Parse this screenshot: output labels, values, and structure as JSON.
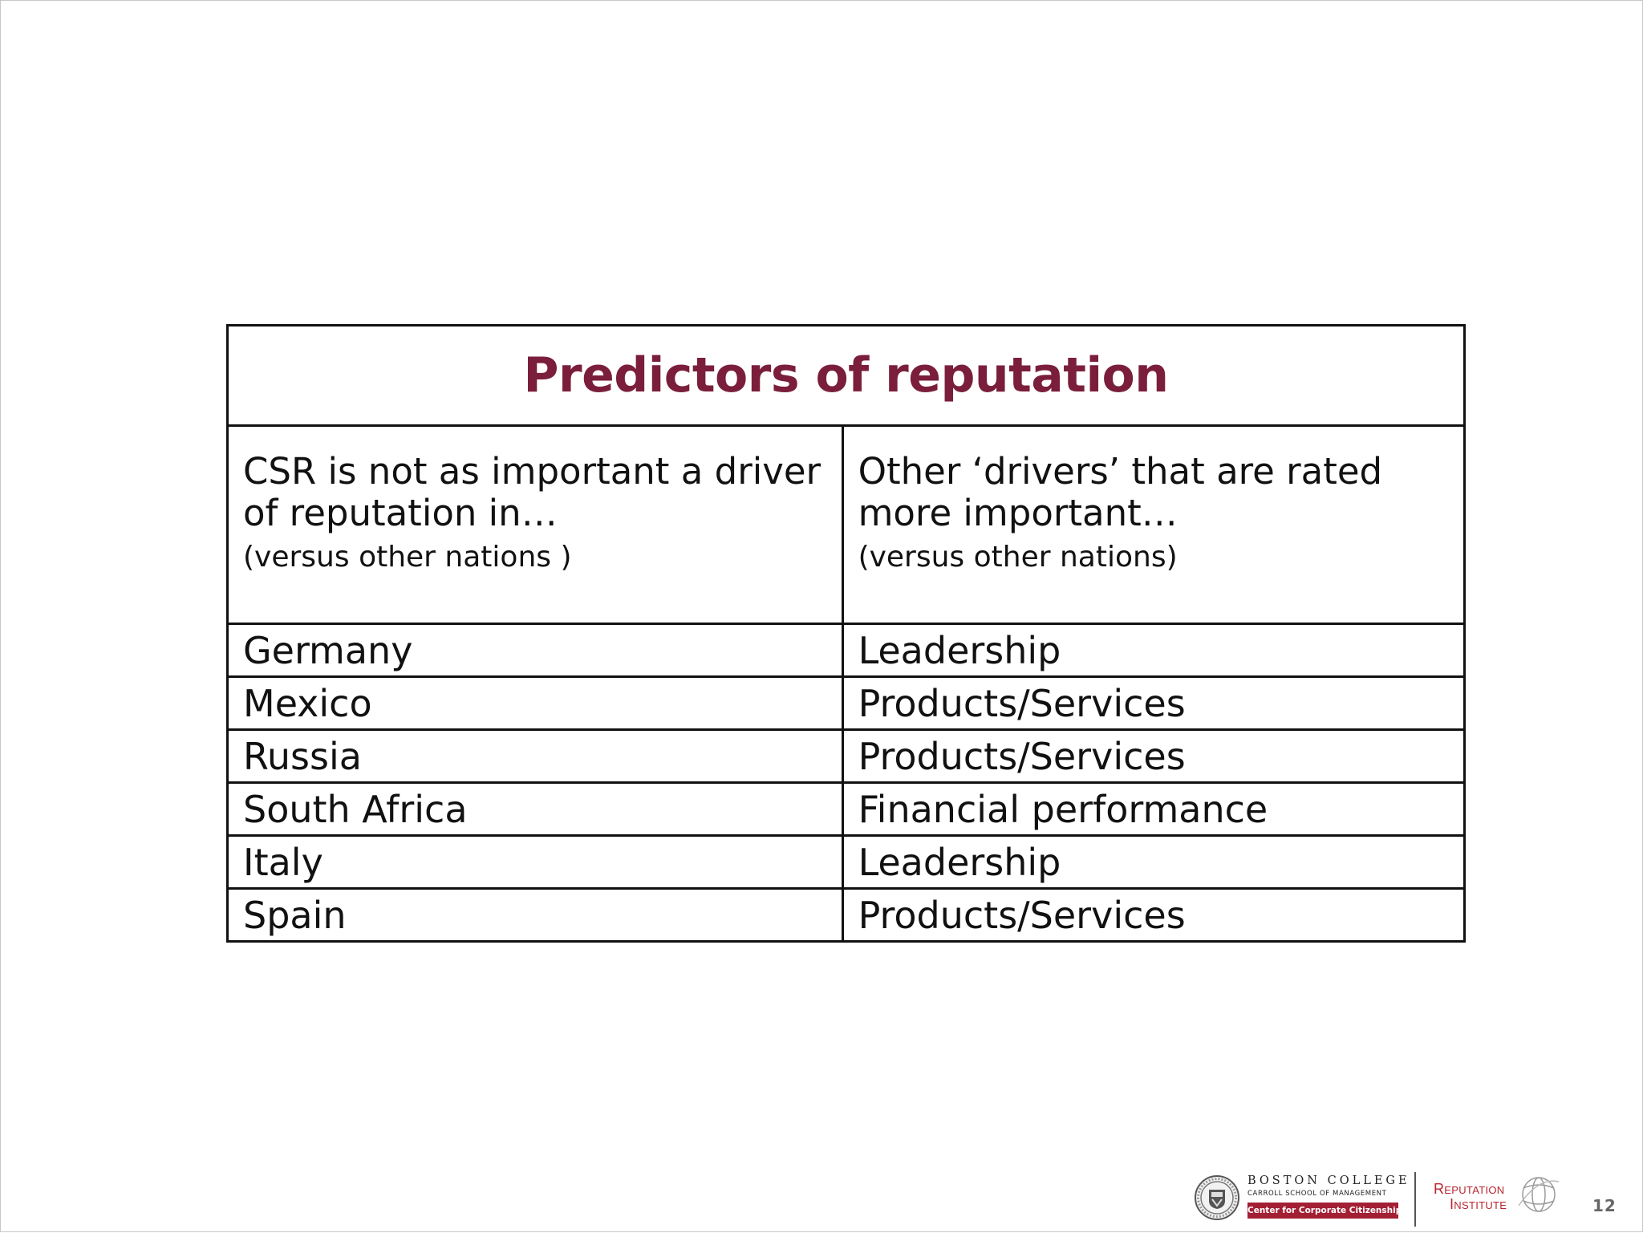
{
  "slide": {
    "page_number": "12"
  },
  "table": {
    "title": "Predictors of reputation",
    "title_color": "#7a1e3b",
    "header": {
      "left_main": "CSR is not as important a driver of reputation in…",
      "left_sub": "(versus other nations )",
      "right_main": "Other ‘drivers’ that are rated more important…",
      "right_sub": "(versus other nations)"
    },
    "rows": [
      {
        "country": "Germany",
        "driver": "Leadership"
      },
      {
        "country": "Mexico",
        "driver": "Products/Services"
      },
      {
        "country": "Russia",
        "driver": "Products/Services"
      },
      {
        "country": "South Africa",
        "driver": "Financial performance"
      },
      {
        "country": "Italy",
        "driver": "Leadership"
      },
      {
        "country": "Spain",
        "driver": "Products/Services"
      }
    ]
  },
  "footer": {
    "bc_name": "BOSTON COLLEGE",
    "bc_school": "CARROLL SCHOOL OF MANAGEMENT",
    "bc_center": "Center for Corporate Citizenship",
    "bc_center_color": "#a31f34",
    "ri_line1": "Reputation",
    "ri_line2": "Institute",
    "ri_color": "#b8242f",
    "seal_icon": "boston-college-seal-icon",
    "globe_icon": "globe-icon"
  }
}
